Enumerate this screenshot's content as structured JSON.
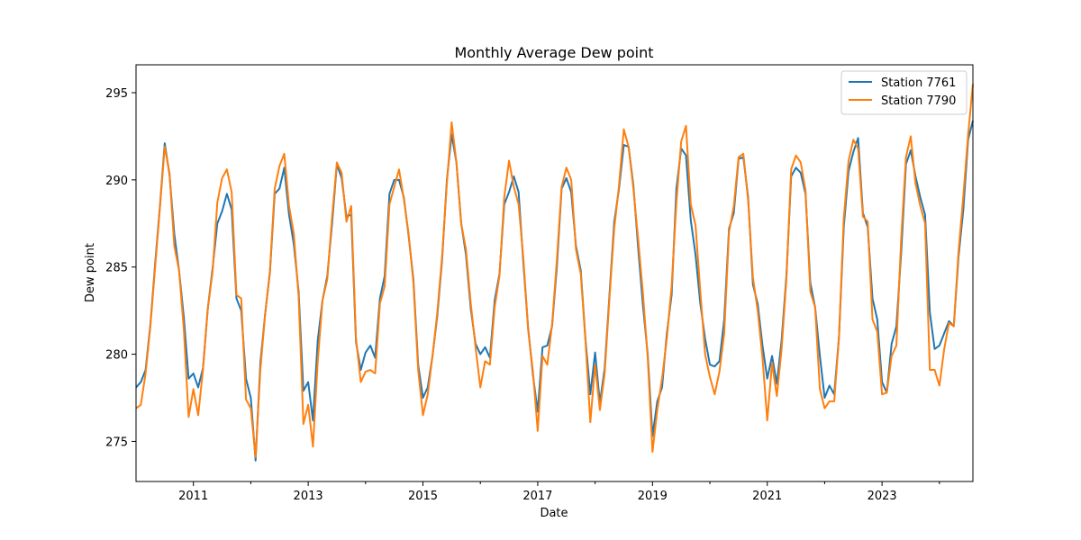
{
  "chart_data": {
    "type": "line",
    "title": "Monthly Average Dew point",
    "xlabel": "Date",
    "ylabel": "Dew point",
    "x_start": "2010-01",
    "x_end": "2024-08",
    "xlim": [
      "2010-01",
      "2024-08"
    ],
    "ylim": [
      272.7,
      296.6
    ],
    "xticks": [
      {
        "date": "2011-01",
        "label": "2011"
      },
      {
        "date": "2013-01",
        "label": "2013"
      },
      {
        "date": "2015-01",
        "label": "2015"
      },
      {
        "date": "2017-01",
        "label": "2017"
      },
      {
        "date": "2019-01",
        "label": "2019"
      },
      {
        "date": "2021-01",
        "label": "2021"
      },
      {
        "date": "2023-01",
        "label": "2023"
      }
    ],
    "minor_xticks": [
      "2012-01",
      "2014-01",
      "2016-01",
      "2018-01",
      "2020-01",
      "2022-01",
      "2024-01"
    ],
    "yticks": [
      275,
      280,
      285,
      290,
      295
    ],
    "legend_position": "top-right",
    "grid": false,
    "series": [
      {
        "name": "Station 7761",
        "color": "#1f77b4",
        "values": [
          278.1,
          278.4,
          279.1,
          281.7,
          285.2,
          288.5,
          292.1,
          290.3,
          286.9,
          284.8,
          282.1,
          278.6,
          278.9,
          278.1,
          279.2,
          282.6,
          284.9,
          287.5,
          288.2,
          289.2,
          288.3,
          283.2,
          282.5,
          278.6,
          277.5,
          273.9,
          279.5,
          282.3,
          284.7,
          289.2,
          289.5,
          290.7,
          288.0,
          286.3,
          283.6,
          277.9,
          278.4,
          276.2,
          280.8,
          283.1,
          284.5,
          287.5,
          290.9,
          290.1,
          287.9,
          288.0,
          280.7,
          279.1,
          280.1,
          280.5,
          279.8,
          283.2,
          284.5,
          289.2,
          290.0,
          290.0,
          289.0,
          286.8,
          284.3,
          279.4,
          277.5,
          278.1,
          279.9,
          282.2,
          285.4,
          290.0,
          292.6,
          291.0,
          287.5,
          285.7,
          282.6,
          280.6,
          280.0,
          280.4,
          279.8,
          283.1,
          284.6,
          288.6,
          289.3,
          290.2,
          289.3,
          285.2,
          281.5,
          278.8,
          276.7,
          280.4,
          280.5,
          281.6,
          285.0,
          289.5,
          290.1,
          289.3,
          286.2,
          284.8,
          280.8,
          277.7,
          280.1,
          277.2,
          279.2,
          283.4,
          287.6,
          289.5,
          292.0,
          291.9,
          289.7,
          286.1,
          282.8,
          280.0,
          275.3,
          277.3,
          278.1,
          281.2,
          283.4,
          289.5,
          291.8,
          291.4,
          287.7,
          285.7,
          282.9,
          280.9,
          279.4,
          279.3,
          279.6,
          282.0,
          287.2,
          288.1,
          291.2,
          291.3,
          289.0,
          284.0,
          282.9,
          280.5,
          278.6,
          279.9,
          278.3,
          280.8,
          284.5,
          290.2,
          290.7,
          290.4,
          289.2,
          284.1,
          282.7,
          279.9,
          277.5,
          278.2,
          277.7,
          281.0,
          287.3,
          290.5,
          291.6,
          292.4,
          288.1,
          287.3,
          283.2,
          282.0,
          278.4,
          277.8,
          280.6,
          281.6,
          285.8,
          290.9,
          291.7,
          290.2,
          289.0,
          288.0,
          282.4,
          280.3,
          280.5,
          281.2,
          281.9,
          281.6,
          285.6,
          288.3,
          292.3,
          293.4
        ]
      },
      {
        "name": "Station 7790",
        "color": "#ff7f0e",
        "values": [
          276.9,
          277.1,
          278.9,
          281.6,
          285.0,
          288.4,
          291.9,
          290.4,
          286.2,
          284.8,
          281.4,
          276.4,
          278.0,
          276.5,
          279.1,
          282.6,
          284.7,
          288.7,
          290.1,
          290.6,
          289.3,
          283.4,
          283.2,
          277.4,
          276.9,
          274.1,
          279.1,
          282.3,
          284.8,
          289.5,
          290.8,
          291.5,
          288.5,
          286.9,
          283.3,
          276.0,
          277.1,
          274.7,
          279.6,
          283.1,
          284.3,
          287.9,
          291.0,
          290.4,
          287.6,
          288.5,
          280.9,
          278.4,
          279.0,
          279.1,
          278.9,
          282.9,
          283.9,
          288.6,
          289.6,
          290.6,
          288.9,
          286.9,
          284.1,
          279.1,
          276.5,
          277.7,
          279.9,
          282.4,
          285.6,
          289.8,
          293.3,
          291.0,
          287.5,
          286.0,
          282.9,
          280.4,
          278.1,
          279.6,
          279.4,
          282.7,
          284.5,
          289.0,
          291.1,
          289.6,
          288.6,
          285.5,
          281.4,
          279.0,
          275.6,
          279.9,
          279.4,
          281.7,
          285.4,
          289.6,
          290.7,
          290.0,
          286.0,
          284.6,
          280.7,
          276.1,
          279.4,
          276.8,
          278.9,
          283.2,
          287.2,
          289.7,
          292.9,
          291.9,
          289.5,
          286.6,
          283.5,
          279.8,
          274.4,
          276.8,
          278.6,
          280.9,
          283.9,
          288.7,
          292.2,
          293.1,
          288.6,
          287.4,
          283.6,
          280.0,
          278.7,
          277.7,
          279.0,
          281.2,
          287.0,
          288.5,
          291.3,
          291.5,
          288.8,
          284.4,
          282.5,
          279.8,
          276.2,
          279.5,
          277.6,
          280.3,
          284.3,
          290.6,
          291.4,
          291.0,
          289.4,
          283.6,
          282.7,
          278.0,
          276.9,
          277.3,
          277.3,
          281.0,
          287.8,
          291.1,
          292.3,
          291.8,
          287.9,
          287.6,
          282.0,
          281.3,
          277.7,
          277.8,
          279.9,
          280.5,
          286.6,
          291.3,
          292.5,
          289.8,
          288.5,
          287.5,
          279.1,
          279.1,
          278.2,
          280.3,
          281.8,
          281.6,
          285.9,
          289.1,
          292.6,
          295.5
        ]
      }
    ]
  }
}
